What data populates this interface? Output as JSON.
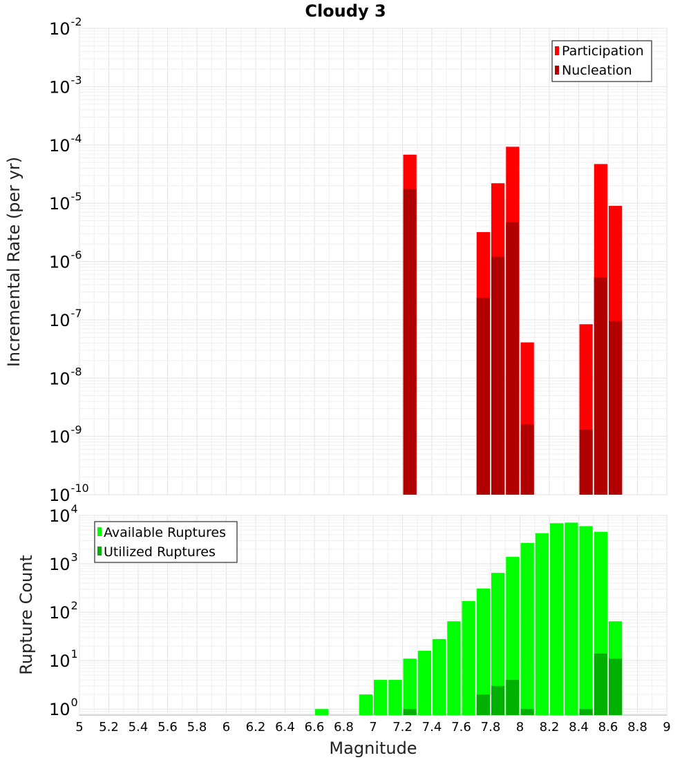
{
  "figure_title": "Cloudy 3",
  "colors": {
    "participation": "#ff0000",
    "nucleation": "#b00000",
    "available": "#00ff00",
    "utilized": "#00b000"
  },
  "chart_data": [
    {
      "type": "bar",
      "title": "Cloudy 3",
      "xlabel": "",
      "ylabel": "Incremental Rate (per yr)",
      "xlim": [
        5,
        9
      ],
      "ylim": [
        1e-10,
        0.01
      ],
      "yscale": "log",
      "ytick_exponents": [
        -10,
        -9,
        -8,
        -7,
        -6,
        -5,
        -4,
        -3,
        -2
      ],
      "ytick_base": "10",
      "bin_width": 0.1,
      "legend_position": "top-right",
      "series": [
        {
          "name": "Participation",
          "color": "#ff0000",
          "x": [
            7.25,
            7.75,
            7.85,
            7.95,
            8.05,
            8.45,
            8.55,
            8.65
          ],
          "values": [
            6.8e-05,
            3.2e-06,
            2.2e-05,
            9.3e-05,
            4.1e-08,
            8.4e-08,
            4.7e-05,
            9e-06
          ]
        },
        {
          "name": "Nucleation",
          "color": "#b00000",
          "x": [
            7.25,
            7.75,
            7.85,
            7.95,
            8.05,
            8.45,
            8.55,
            8.65
          ],
          "values": [
            1.75e-05,
            2.4e-07,
            1.2e-06,
            4.7e-06,
            1.6e-09,
            1.3e-09,
            5.3e-07,
            9.5e-08
          ]
        }
      ]
    },
    {
      "type": "bar",
      "title": "",
      "xlabel": "Magnitude",
      "ylabel": "Rupture Count",
      "xlim": [
        5,
        9
      ],
      "ylim": [
        0.75,
        10000
      ],
      "yscale": "log",
      "ytick_exponents": [
        0,
        1,
        2,
        3,
        4
      ],
      "ytick_base": "10",
      "xticks": [
        "5",
        "5.2",
        "5.4",
        "5.6",
        "5.8",
        "6",
        "6.2",
        "6.4",
        "6.6",
        "6.8",
        "7",
        "7.2",
        "7.4",
        "7.6",
        "7.8",
        "8",
        "8.2",
        "8.4",
        "8.6",
        "8.8",
        "9"
      ],
      "bin_width": 0.1,
      "legend_position": "top-left",
      "series": [
        {
          "name": "Available Ruptures",
          "color": "#00ff00",
          "x": [
            6.65,
            6.95,
            7.05,
            7.15,
            7.25,
            7.35,
            7.45,
            7.55,
            7.65,
            7.75,
            7.85,
            7.95,
            8.05,
            8.15,
            8.25,
            8.35,
            8.45,
            8.55,
            8.65
          ],
          "values": [
            1,
            2,
            4,
            4,
            11,
            16,
            28,
            65,
            170,
            310,
            650,
            1400,
            2700,
            4300,
            6900,
            7100,
            6000,
            4600,
            65
          ]
        },
        {
          "name": "Utilized Ruptures",
          "color": "#00b000",
          "x": [
            7.25,
            7.75,
            7.85,
            7.95,
            8.05,
            8.45,
            8.55,
            8.65
          ],
          "values": [
            1,
            2,
            3,
            4,
            1,
            1,
            14,
            11
          ]
        }
      ]
    }
  ]
}
